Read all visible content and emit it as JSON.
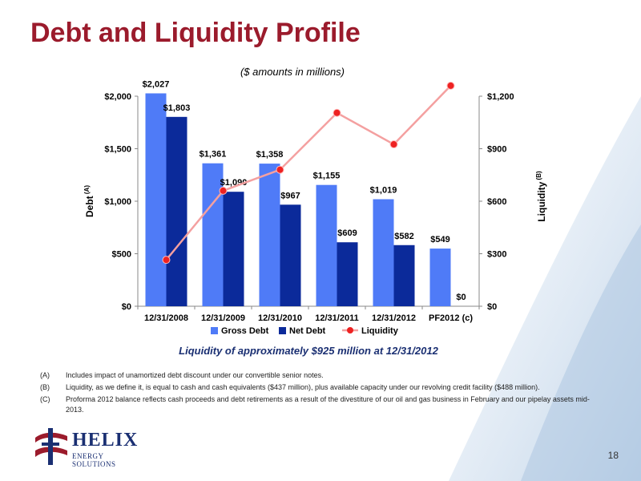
{
  "title": "Debt and Liquidity Profile",
  "subtitle": "($ amounts in millions)",
  "caption": "Liquidity of approximately $925 million at 12/31/2012",
  "footnotes": [
    {
      "key": "(A)",
      "text": "Includes impact of unamortized debt discount under our convertible senior notes."
    },
    {
      "key": "(B)",
      "text": "Liquidity, as we define it, is equal to cash and cash equivalents ($437 million), plus available capacity under our revolving credit facility ($488 million)."
    },
    {
      "key": "(C)",
      "text": "Proforma 2012 balance reflects cash proceeds and debt retirements as a result of the divestiture of our oil and gas business in February and our pipelay assets mid-2013."
    }
  ],
  "logo": {
    "name": "HELIX",
    "sub": "ENERGY SOLUTIONS"
  },
  "page_number": "18",
  "colors": {
    "gross_debt": "#4f7bf7",
    "net_debt": "#0b2a9a",
    "liquidity_line": "#f4a0a0",
    "liquidity_marker": "#ee2222",
    "title": "#9b1b2c"
  },
  "chart_data": {
    "type": "bar",
    "categories": [
      "12/31/2008",
      "12/31/2009",
      "12/31/2010",
      "12/31/2011",
      "12/31/2012",
      "PF2012 (c)"
    ],
    "series": [
      {
        "name": "Gross Debt",
        "type": "bar",
        "axis": "left",
        "values": [
          2027,
          1361,
          1358,
          1155,
          1019,
          549
        ],
        "labels": [
          "$2,027",
          "$1,361",
          "$1,358",
          "$1,155",
          "$1,019",
          "$549"
        ]
      },
      {
        "name": "Net Debt",
        "type": "bar",
        "axis": "left",
        "values": [
          1803,
          1090,
          967,
          609,
          582,
          0
        ],
        "labels": [
          "$1,803",
          "$1,090",
          "$967",
          "$609",
          "$582",
          "$0"
        ]
      },
      {
        "name": "Liquidity",
        "type": "line",
        "axis": "right",
        "values": [
          265,
          660,
          780,
          1105,
          925,
          1260
        ]
      }
    ],
    "ylabel": "Debt",
    "ylabel_superscript": "(A)",
    "y2label": "Liquidity",
    "y2label_superscript": "(B)",
    "ylim": [
      0,
      2000
    ],
    "y2lim": [
      0,
      1200
    ],
    "yticks": [
      "$0",
      "$500",
      "$1,000",
      "$1,500",
      "$2,000"
    ],
    "y2ticks": [
      "$0",
      "$300",
      "$600",
      "$900",
      "$1,200"
    ],
    "grid": false,
    "legend": "bottom"
  }
}
